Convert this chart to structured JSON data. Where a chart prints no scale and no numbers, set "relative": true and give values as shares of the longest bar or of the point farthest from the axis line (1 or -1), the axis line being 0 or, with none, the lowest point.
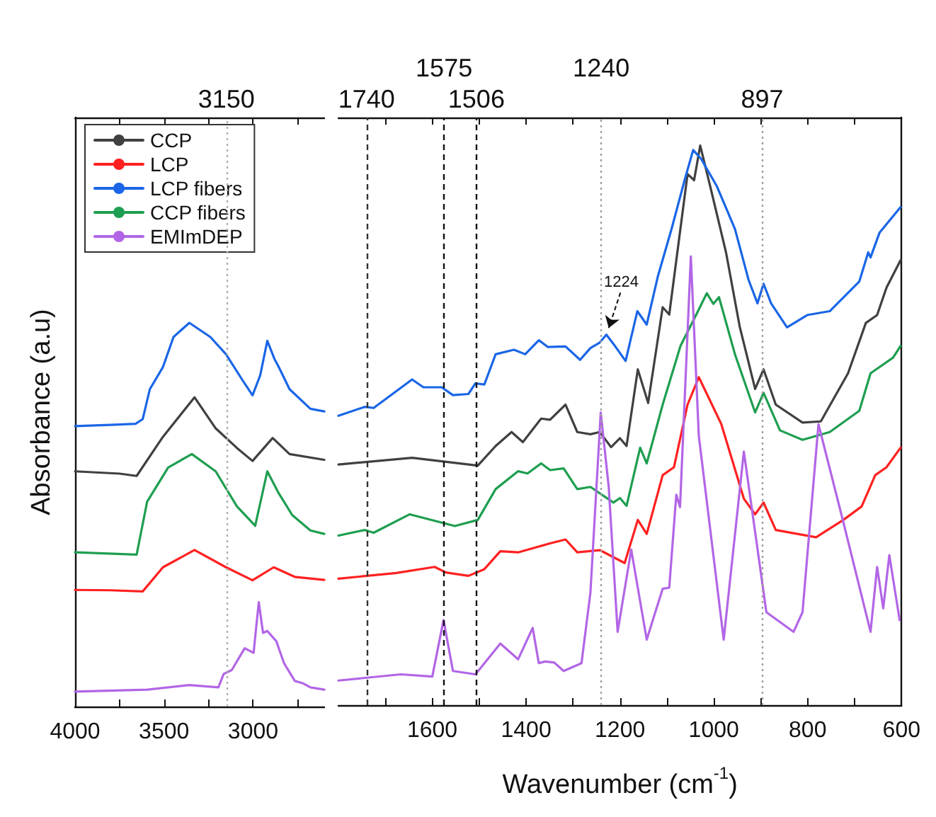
{
  "chart_data": [
    {
      "type": "line",
      "ylabel": "Absorbance (a.u)",
      "relative": true,
      "legend": "top left",
      "xlim": [
        4000,
        2600
      ],
      "xticks": [
        4000,
        {
          "value": 3750,
          "label": null
        },
        3500,
        {
          "value": 3250,
          "label": null
        },
        3000,
        {
          "value": 2750,
          "label": null
        }
      ],
      "ref_lines": [
        {
          "axis": "x",
          "value": 3150,
          "label": "3150",
          "color": "#b0b0b0",
          "line_style": "dotted"
        }
      ],
      "series": [
        {
          "name": "CCP",
          "color": "#404040",
          "x": [
            4000,
            3750,
            3654,
            3506,
            3329,
            3210,
            3091,
            3003,
            2890,
            2795,
            2600
          ],
          "values": [
            0.613,
            0.607,
            0.601,
            0.703,
            0.806,
            0.725,
            0.674,
            0.64,
            0.7,
            0.658,
            0.643
          ]
        },
        {
          "name": "LCP",
          "color": "#ff2020",
          "x": [
            4000,
            3800,
            3620,
            3506,
            3329,
            3152,
            3003,
            2884,
            2766,
            2600
          ],
          "values": [
            0.304,
            0.303,
            0.3,
            0.363,
            0.408,
            0.363,
            0.329,
            0.363,
            0.338,
            0.33
          ]
        },
        {
          "name": "LCP fibers",
          "color": "#1a66e6",
          "x": [
            4000,
            3800,
            3660,
            3620,
            3580,
            3506,
            3447,
            3358,
            3240,
            3152,
            3060,
            3003,
            2960,
            2920,
            2880,
            2856,
            2795,
            2678,
            2600
          ],
          "values": [
            0.731,
            0.734,
            0.737,
            0.749,
            0.827,
            0.885,
            0.963,
            1.0,
            0.963,
            0.918,
            0.851,
            0.811,
            0.863,
            0.953,
            0.906,
            0.885,
            0.827,
            0.776,
            0.769
          ]
        },
        {
          "name": "CCP fibers",
          "color": "#1e9e50",
          "x": [
            4000,
            3654,
            3595,
            3477,
            3344,
            3210,
            3091,
            2988,
            2920,
            2856,
            2780,
            2678,
            2600
          ],
          "values": [
            0.402,
            0.396,
            0.534,
            0.623,
            0.658,
            0.613,
            0.522,
            0.471,
            0.613,
            0.556,
            0.499,
            0.459,
            0.45
          ]
        },
        {
          "name": "EMImDEP",
          "color": "#b266e6",
          "x": [
            4000,
            3595,
            3358,
            3195,
            3165,
            3120,
            3047,
            2997,
            2968,
            2944,
            2920,
            2890,
            2870,
            2826,
            2766,
            2722,
            2678,
            2600
          ],
          "values": [
            0.039,
            0.044,
            0.056,
            0.05,
            0.085,
            0.095,
            0.152,
            0.14,
            0.272,
            0.192,
            0.197,
            0.181,
            0.171,
            0.113,
            0.067,
            0.061,
            0.05,
            0.044
          ]
        }
      ]
    },
    {
      "type": "line",
      "xlabel": "Wavenumber (cm$^{-1}$)",
      "relative": true,
      "xlim": [
        1800,
        600
      ],
      "xticks": [
        {
          "value": 1700,
          "label": null
        },
        1600,
        {
          "value": 1500,
          "label": null
        },
        1400,
        {
          "value": 1300,
          "label": null
        },
        1200,
        {
          "value": 1100,
          "label": null
        },
        1000,
        {
          "value": 900,
          "label": null
        },
        800,
        {
          "value": 700,
          "label": null
        },
        600
      ],
      "ref_lines": [
        {
          "axis": "x",
          "value": 1740,
          "label": "1740",
          "color": "#333333",
          "line_style": "dashed"
        },
        {
          "axis": "x",
          "value": 1575,
          "label": "1575",
          "color": "#111111",
          "line_style": "dashed"
        },
        {
          "axis": "x",
          "value": 1506,
          "label": "1506",
          "color": "#111111",
          "line_style": "dashed"
        },
        {
          "axis": "x",
          "value": 1240,
          "label": "1240",
          "color": "#a0a0a0",
          "line_style": "dotted"
        },
        {
          "axis": "x",
          "value": 897,
          "label": "897",
          "color": "#a0a0a0",
          "line_style": "dotted"
        }
      ],
      "annotations": [
        {
          "text": "1224",
          "x": 1224,
          "y": 0.662
        }
      ],
      "series": [
        {
          "color": "#404040",
          "x": [
            1800,
            1643,
            1503,
            1465,
            1431,
            1407,
            1368,
            1349,
            1316,
            1291,
            1263,
            1243,
            1219,
            1200,
            1186,
            1162,
            1140,
            1109,
            1095,
            1056,
            1042,
            1029,
            1008,
            974,
            945,
            912,
            894,
            868,
            811,
            772,
            714,
            676,
            652,
            632,
            602
          ],
          "values": [
            0.43,
            0.442,
            0.428,
            0.463,
            0.488,
            0.47,
            0.512,
            0.51,
            0.537,
            0.488,
            0.484,
            0.488,
            0.461,
            0.477,
            0.463,
            0.6,
            0.54,
            0.711,
            0.698,
            0.949,
            0.938,
            1.0,
            0.928,
            0.809,
            0.677,
            0.565,
            0.6,
            0.537,
            0.505,
            0.507,
            0.593,
            0.683,
            0.697,
            0.746,
            0.795
          ]
        },
        {
          "color": "#ff2020",
          "x": [
            1800,
            1677,
            1595,
            1571,
            1523,
            1489,
            1455,
            1417,
            1349,
            1316,
            1291,
            1243,
            1190,
            1162,
            1143,
            1109,
            1085,
            1056,
            1032,
            984,
            936,
            912,
            894,
            868,
            782,
            724,
            685,
            656,
            632,
            602
          ],
          "values": [
            0.226,
            0.236,
            0.247,
            0.237,
            0.231,
            0.243,
            0.275,
            0.273,
            0.289,
            0.296,
            0.273,
            0.277,
            0.254,
            0.331,
            0.306,
            0.411,
            0.425,
            0.537,
            0.586,
            0.502,
            0.369,
            0.341,
            0.362,
            0.313,
            0.3,
            0.331,
            0.355,
            0.411,
            0.425,
            0.46
          ]
        },
        {
          "color": "#1a66e6",
          "x": [
            1800,
            1744,
            1725,
            1643,
            1619,
            1580,
            1556,
            1523,
            1508,
            1489,
            1465,
            1426,
            1402,
            1373,
            1354,
            1316,
            1285,
            1263,
            1243,
            1229,
            1210,
            1188,
            1163,
            1143,
            1119,
            1090,
            1061,
            1044,
            1027,
            994,
            955,
            926,
            907,
            894,
            878,
            844,
            801,
            753,
            690,
            671,
            666,
            647,
            602
          ],
          "values": [
            0.517,
            0.533,
            0.531,
            0.582,
            0.568,
            0.568,
            0.554,
            0.556,
            0.575,
            0.573,
            0.627,
            0.635,
            0.627,
            0.652,
            0.64,
            0.641,
            0.617,
            0.638,
            0.648,
            0.662,
            0.641,
            0.615,
            0.704,
            0.68,
            0.767,
            0.851,
            0.942,
            0.992,
            0.976,
            0.928,
            0.851,
            0.76,
            0.718,
            0.753,
            0.718,
            0.675,
            0.697,
            0.704,
            0.757,
            0.809,
            0.8,
            0.844,
            0.89
          ]
        },
        {
          "color": "#1e9e50",
          "x": [
            1800,
            1744,
            1725,
            1648,
            1552,
            1503,
            1465,
            1417,
            1397,
            1368,
            1349,
            1320,
            1291,
            1263,
            1214,
            1200,
            1186,
            1157,
            1143,
            1109,
            1071,
            1042,
            1015,
            1001,
            989,
            955,
            912,
            894,
            859,
            811,
            753,
            690,
            666,
            618,
            602
          ],
          "values": [
            0.303,
            0.313,
            0.308,
            0.341,
            0.32,
            0.331,
            0.386,
            0.418,
            0.414,
            0.432,
            0.42,
            0.423,
            0.386,
            0.39,
            0.362,
            0.37,
            0.356,
            0.46,
            0.432,
            0.537,
            0.642,
            0.69,
            0.736,
            0.717,
            0.729,
            0.627,
            0.523,
            0.558,
            0.491,
            0.474,
            0.488,
            0.526,
            0.593,
            0.621,
            0.642
          ]
        },
        {
          "color": "#b266e6",
          "x": [
            1800,
            1667,
            1600,
            1576,
            1556,
            1508,
            1455,
            1417,
            1386,
            1373,
            1359,
            1340,
            1320,
            1282,
            1263,
            1241,
            1224,
            1205,
            1176,
            1143,
            1109,
            1095,
            1080,
            1072,
            1049,
            1032,
            979,
            936,
            888,
            830,
            811,
            777,
            724,
            666,
            652,
            639,
            626,
            604
          ],
          "values": [
            0.044,
            0.055,
            0.051,
            0.152,
            0.061,
            0.055,
            0.11,
            0.082,
            0.138,
            0.075,
            0.078,
            0.076,
            0.061,
            0.075,
            0.201,
            0.523,
            0.39,
            0.131,
            0.278,
            0.117,
            0.208,
            0.21,
            0.376,
            0.354,
            0.802,
            0.481,
            0.117,
            0.453,
            0.166,
            0.131,
            0.166,
            0.502,
            0.327,
            0.131,
            0.247,
            0.173,
            0.268,
            0.152
          ]
        }
      ]
    }
  ]
}
